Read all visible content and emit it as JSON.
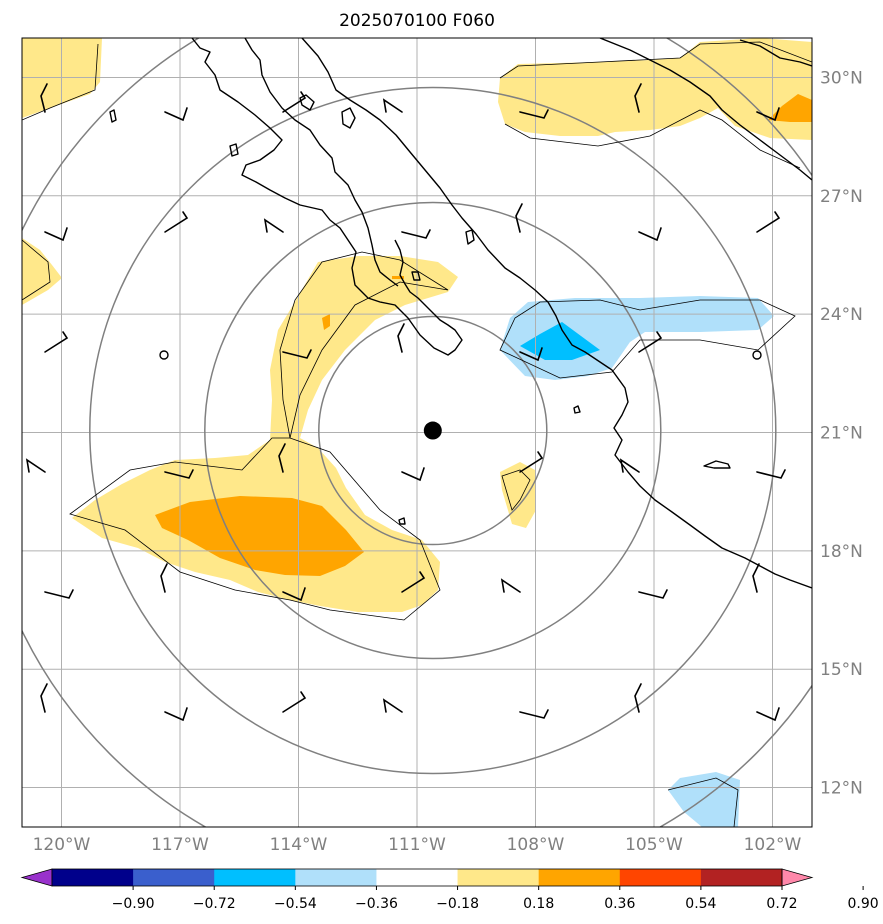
{
  "title": "2025070100 F060",
  "map": {
    "lon_range": [
      -121,
      -101
    ],
    "lat_range": [
      11,
      31
    ],
    "lon_ticks": [
      {
        "value": -120,
        "label": "120°W"
      },
      {
        "value": -117,
        "label": "117°W"
      },
      {
        "value": -114,
        "label": "114°W"
      },
      {
        "value": -111,
        "label": "111°W"
      },
      {
        "value": -108,
        "label": "108°W"
      },
      {
        "value": -105,
        "label": "105°W"
      },
      {
        "value": -102,
        "label": "102°W"
      }
    ],
    "lat_ticks": [
      {
        "value": 30,
        "label": "30°N"
      },
      {
        "value": 27,
        "label": "27°N"
      },
      {
        "value": 24,
        "label": "24°N"
      },
      {
        "value": 21,
        "label": "21°N"
      },
      {
        "value": 18,
        "label": "18°N"
      },
      {
        "value": 15,
        "label": "15°N"
      },
      {
        "value": 12,
        "label": "12°N"
      }
    ],
    "storm_center": {
      "lon": -110.6,
      "lat": 21.05
    },
    "colors": {
      "gridline": "#b0b0b0",
      "range_ring": "#808080",
      "coastline": "#000000",
      "tick_label": "#808080"
    }
  },
  "colorbar": {
    "levels": [
      "−0.90",
      "−0.72",
      "−0.54",
      "−0.36",
      "−0.18",
      "0.18",
      "0.36",
      "0.54",
      "0.72",
      "0.90"
    ],
    "colors": [
      "#9932cc",
      "#00008b",
      "#3a5fcd",
      "#00bfff",
      "#b0e0fa",
      "#ffffff",
      "#ffe88a",
      "#ffa500",
      "#ff4500",
      "#b22222",
      "#ff88aa"
    ]
  }
}
